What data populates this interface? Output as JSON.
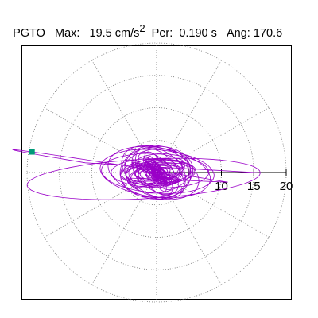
{
  "header": {
    "station": "PGTO",
    "max_label": "Max:",
    "max_value": "19.5",
    "max_unit": "cm/s",
    "max_unit_exp": "2",
    "per_label": "Per:",
    "per_value": "0.190 s",
    "ang_label": "Ang:",
    "ang_value": "170.6"
  },
  "chart_data": {
    "type": "polar-orbit",
    "title": "",
    "radial_ticks": [
      5,
      10,
      15,
      20
    ],
    "radial_tick_labels": [
      "10",
      "15",
      "20"
    ],
    "r_max": 20,
    "grid": true,
    "gridline_angles_deg": [
      0,
      30,
      60,
      90,
      120,
      150,
      180,
      210,
      240,
      270,
      300,
      330
    ],
    "max_point": {
      "amplitude": 19.5,
      "angle_deg": 170.6
    },
    "orbit_color": "#9a00c8",
    "marker_color": "#009a78"
  }
}
